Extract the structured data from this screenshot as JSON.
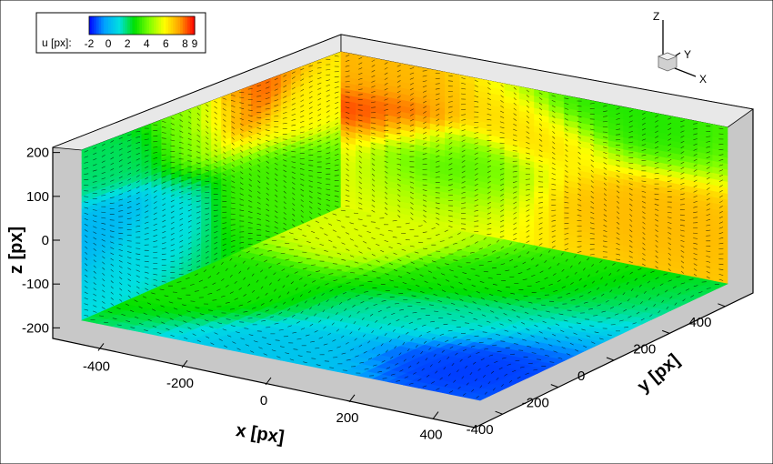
{
  "chart_data": {
    "type": "volume-vector-contour",
    "colorbar": {
      "label": "u [px]:",
      "ticks": [
        "-2",
        "0",
        "2",
        "4",
        "6",
        "8",
        "9"
      ],
      "range": [
        -2,
        9
      ],
      "colors": [
        "#0000ff",
        "#00a0ff",
        "#00e0e0",
        "#00e000",
        "#80ff00",
        "#ffff00",
        "#ffa000",
        "#ff0000"
      ]
    },
    "axes": {
      "x": {
        "label": "x [px]",
        "ticks": [
          "-400",
          "-200",
          "0",
          "200",
          "400"
        ],
        "range": [
          -500,
          500
        ]
      },
      "y": {
        "label": "y [px]",
        "ticks": [
          "-400",
          "-200",
          "0",
          "200",
          "400"
        ],
        "range": [
          -500,
          500
        ]
      },
      "z": {
        "label": "z [px]",
        "ticks": [
          "-200",
          "-100",
          "0",
          "100",
          "200"
        ],
        "range": [
          -220,
          220
        ]
      }
    },
    "triad": {
      "x": "X",
      "y": "Y",
      "z": "Z"
    },
    "walls": [
      "back (x-z plane at y=+500)",
      "side (y-z plane at x=+500)",
      "floor (x-y plane at z=-220)"
    ],
    "field": {
      "blobs": [
        {
          "wall": "back",
          "u": 0.1,
          "v": 0.52,
          "value": 0.0
        },
        {
          "wall": "back",
          "u": 0.3,
          "v": 0.35,
          "value": 1.0
        },
        {
          "wall": "back",
          "u": 0.15,
          "v": 0.82,
          "value": 2.0
        },
        {
          "wall": "back",
          "u": 0.62,
          "v": 0.9,
          "value": 8.5
        },
        {
          "wall": "back",
          "u": 0.72,
          "v": 0.35,
          "value": 3.5
        },
        {
          "wall": "back",
          "u": 0.45,
          "v": 0.88,
          "value": 4.0
        },
        {
          "wall": "back",
          "u": 0.88,
          "v": 0.75,
          "value": 6.0
        },
        {
          "wall": "side",
          "u": 0.1,
          "v": 0.85,
          "value": 7.0
        },
        {
          "wall": "side",
          "u": 0.12,
          "v": 0.65,
          "value": 8.8
        },
        {
          "wall": "side",
          "u": 0.25,
          "v": 0.5,
          "value": 3.5
        },
        {
          "wall": "side",
          "u": 0.5,
          "v": 0.75,
          "value": 6.5
        },
        {
          "wall": "side",
          "u": 0.8,
          "v": 0.35,
          "value": 7.0
        },
        {
          "wall": "side",
          "u": 0.7,
          "v": 0.9,
          "value": 3.0
        },
        {
          "wall": "floor",
          "u": 0.05,
          "v": 0.5,
          "value": 0.5
        },
        {
          "wall": "floor",
          "u": 0.2,
          "v": 0.8,
          "value": -1.5
        },
        {
          "wall": "floor",
          "u": 0.45,
          "v": 0.6,
          "value": 1.5
        },
        {
          "wall": "floor",
          "u": 0.7,
          "v": 0.5,
          "value": 3.0
        },
        {
          "wall": "floor",
          "u": 0.85,
          "v": 0.2,
          "value": 5.5
        },
        {
          "wall": "floor",
          "u": 0.4,
          "v": 0.1,
          "value": 3.0
        }
      ]
    }
  }
}
